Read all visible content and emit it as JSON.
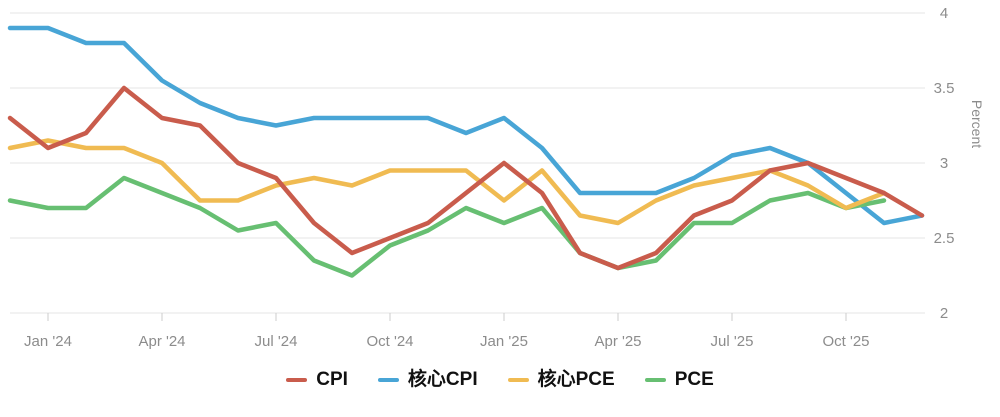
{
  "chart": {
    "y_axis": {
      "title": "Percent",
      "min": 2,
      "max": 4,
      "tick_values": [
        4,
        3.5,
        3,
        2.5,
        2
      ],
      "tick_labels": [
        "4",
        "3.5",
        "3",
        "2.5",
        "2"
      ]
    },
    "x_axis": {
      "tick_labels": [
        "Jan '24",
        "Apr '24",
        "Jul '24",
        "Oct '24",
        "Jan '25",
        "Apr '25",
        "Jul '25",
        "Oct '25"
      ],
      "tick_month_indices": [
        1,
        4,
        7,
        10,
        13,
        16,
        19,
        22
      ]
    },
    "colors": {
      "cpi": "#c95c4c",
      "core_cpi": "#48a5d6",
      "core_pce": "#f0bb52",
      "pce": "#67bf72",
      "grid": "#e6e6e6",
      "text": "#8c8c8c"
    }
  },
  "chart_data": {
    "type": "line",
    "title": "",
    "xlabel": "",
    "ylabel": "Percent",
    "ylim": [
      2,
      4
    ],
    "grid": "horizontal",
    "legend_position": "bottom-center",
    "x": [
      "Dec '23",
      "Jan '24",
      "Feb '24",
      "Mar '24",
      "Apr '24",
      "May '24",
      "Jun '24",
      "Jul '24",
      "Aug '24",
      "Sep '24",
      "Oct '24",
      "Nov '24",
      "Dec '24",
      "Jan '25",
      "Feb '25",
      "Mar '25",
      "Apr '25",
      "May '25",
      "Jun '25",
      "Jul '25",
      "Aug '25",
      "Sep '25",
      "Oct '25",
      "Nov '25",
      "Dec '25"
    ],
    "series": [
      {
        "name": "核心CPI",
        "color": "#48a5d6",
        "values": [
          3.9,
          3.9,
          3.8,
          3.8,
          3.55,
          3.4,
          3.3,
          3.25,
          3.3,
          3.3,
          3.3,
          3.3,
          3.2,
          3.3,
          3.1,
          2.8,
          2.8,
          2.8,
          2.9,
          3.05,
          3.1,
          3.0,
          2.8,
          2.6,
          2.65
        ]
      },
      {
        "name": "PCE",
        "color": "#67bf72",
        "values": [
          2.75,
          2.7,
          2.7,
          2.9,
          2.8,
          2.7,
          2.55,
          2.6,
          2.35,
          2.25,
          2.45,
          2.55,
          2.7,
          2.6,
          2.7,
          2.4,
          2.3,
          2.35,
          2.6,
          2.6,
          2.75,
          2.8,
          2.7,
          2.75,
          null
        ]
      },
      {
        "name": "核心PCE",
        "color": "#f0bb52",
        "values": [
          3.1,
          3.15,
          3.1,
          3.1,
          3.0,
          2.75,
          2.75,
          2.85,
          2.9,
          2.85,
          2.95,
          2.95,
          2.95,
          2.75,
          2.95,
          2.65,
          2.6,
          2.75,
          2.85,
          2.9,
          2.95,
          2.85,
          2.7,
          2.8,
          null
        ]
      },
      {
        "name": "CPI",
        "color": "#c95c4c",
        "values": [
          3.3,
          3.1,
          3.2,
          3.5,
          3.3,
          3.25,
          3.0,
          2.9,
          2.6,
          2.4,
          2.5,
          2.6,
          2.8,
          3.0,
          2.8,
          2.4,
          2.3,
          2.4,
          2.65,
          2.75,
          2.95,
          3.0,
          2.9,
          2.8,
          2.65
        ]
      }
    ],
    "legend_order": [
      "CPI",
      "核心CPI",
      "核心PCE",
      "PCE"
    ]
  }
}
